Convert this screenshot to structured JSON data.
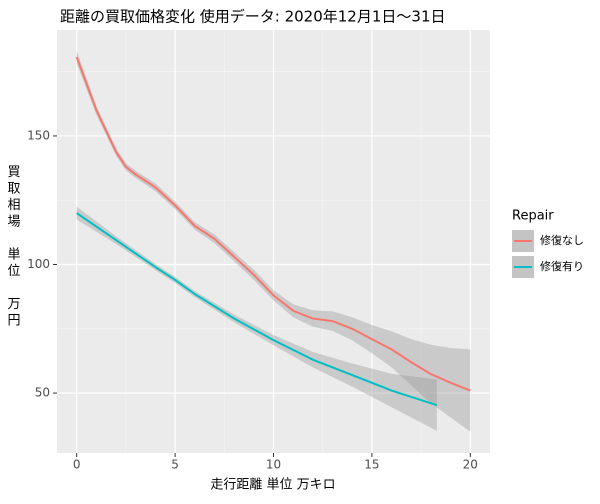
{
  "chart_data": {
    "type": "line",
    "title": "距離の買取価格変化 使用データ: 2020年12月1日～31日",
    "x_label": "走行距離 単位 万キロ",
    "y_label": "買取相場 単位 万円",
    "legend_title": "Repair",
    "legend_position": "right",
    "grid": true,
    "xlim": [
      -1,
      21
    ],
    "xticks": [
      0,
      5,
      10,
      15,
      20
    ],
    "ylim": [
      26.7,
      191.2
    ],
    "yticks": [
      50,
      100,
      150
    ],
    "series": [
      {
        "name": "修復なし",
        "color": "#f8766d",
        "x": [
          0,
          1,
          2,
          2.5,
          3,
          4,
          5,
          6,
          7,
          8,
          9,
          10,
          11,
          12,
          13,
          14,
          15,
          16,
          17,
          18,
          19,
          20
        ],
        "values": [
          180.7,
          160,
          143.8,
          138,
          135,
          130,
          123,
          115,
          110,
          103,
          96,
          88,
          82,
          79,
          78,
          75,
          71,
          67,
          62,
          57.4,
          54,
          51
        ],
        "lower": [
          178.2,
          158.3,
          142.3,
          136.6,
          133.6,
          128.5,
          121.5,
          113.5,
          108.3,
          101.2,
          94,
          86,
          79.5,
          75.8,
          74.2,
          70.5,
          65.5,
          60,
          53,
          46,
          40.5,
          35
        ],
        "upper": [
          183.2,
          161.7,
          145.3,
          139.4,
          136.4,
          131.5,
          124.5,
          116.5,
          111.7,
          104.8,
          98,
          90,
          84.5,
          82.2,
          81.8,
          79.5,
          76.5,
          74,
          71,
          68.8,
          67.5,
          67
        ]
      },
      {
        "name": "修復有り",
        "color": "#00bfc4",
        "x": [
          0,
          2,
          4,
          5,
          6,
          8,
          10,
          12,
          14,
          16,
          18.3
        ],
        "values": [
          120,
          109.5,
          99,
          94,
          88.5,
          79,
          70.6,
          63,
          57,
          51,
          45.3
        ],
        "lower": [
          117.5,
          108,
          97.8,
          92.8,
          87.3,
          77.5,
          68.6,
          60,
          52.5,
          44.5,
          35.3
        ],
        "upper": [
          122.5,
          111,
          100.2,
          95.2,
          89.7,
          80.5,
          72.6,
          66,
          61.5,
          57.5,
          55.3
        ]
      }
    ]
  }
}
